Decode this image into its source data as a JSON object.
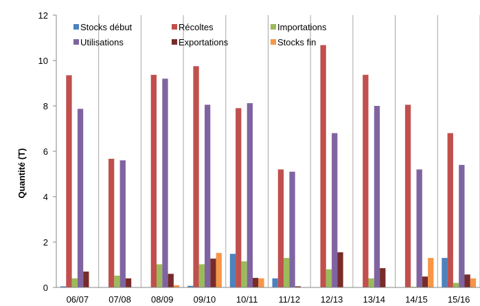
{
  "chart_data": {
    "type": "bar",
    "title": "",
    "xlabel": "",
    "ylabel": "Quantité (T)",
    "ylim": [
      0,
      12
    ],
    "yticks": [
      0,
      2,
      4,
      6,
      8,
      10,
      12
    ],
    "grid": "vertical category separators",
    "legend_position": "top",
    "categories": [
      "06/07",
      "07/08",
      "08/09",
      "09/10",
      "10/11",
      "11/12",
      "12/13",
      "13/14",
      "14/15",
      "15/16"
    ],
    "series": [
      {
        "name": "Stocks début",
        "color": "#4F81BD",
        "values": [
          0.05,
          0.0,
          0.0,
          0.07,
          1.48,
          0.4,
          0.0,
          0.0,
          0.0,
          1.3
        ]
      },
      {
        "name": "Récoltes",
        "color": "#C0504D",
        "values": [
          9.35,
          5.67,
          9.37,
          9.75,
          7.9,
          5.2,
          10.68,
          9.37,
          8.05,
          6.8
        ]
      },
      {
        "name": "Importations",
        "color": "#9BBB59",
        "values": [
          0.4,
          0.52,
          1.02,
          1.02,
          1.15,
          1.3,
          0.8,
          0.4,
          0.03,
          0.2
        ]
      },
      {
        "name": "Utilisations",
        "color": "#8064A2",
        "values": [
          7.87,
          5.6,
          9.2,
          8.05,
          8.12,
          5.1,
          6.8,
          8.0,
          5.2,
          5.4
        ]
      },
      {
        "name": "Exportations",
        "color": "#772C2A",
        "values": [
          0.7,
          0.4,
          0.6,
          1.27,
          0.42,
          0.05,
          1.55,
          0.85,
          0.48,
          0.57
        ]
      },
      {
        "name": "Stocks fin",
        "color": "#F79646",
        "values": [
          0.0,
          0.0,
          0.1,
          1.52,
          0.4,
          0.0,
          0.0,
          0.0,
          1.3,
          0.4
        ]
      }
    ]
  }
}
